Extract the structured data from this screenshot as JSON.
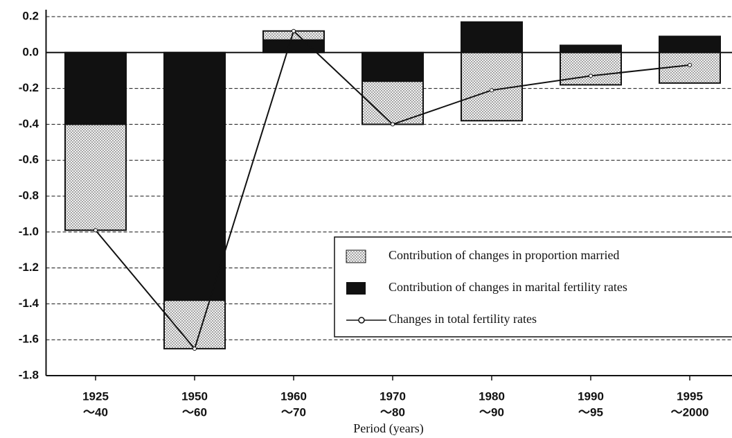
{
  "chart_data": {
    "type": "bar",
    "stacked": true,
    "xlabel": "Period (years)",
    "categories": [
      [
        "1925",
        "～40"
      ],
      [
        "1950",
        "～60"
      ],
      [
        "1960",
        "～70"
      ],
      [
        "1970",
        "～80"
      ],
      [
        "1980",
        "～90"
      ],
      [
        "1990",
        "～95"
      ],
      [
        "1995",
        "～2000"
      ]
    ],
    "ylim": [
      -1.8,
      0.2
    ],
    "yticks": [
      0.2,
      {
        "value": 0,
        "label": "0.0"
      },
      -0.2,
      -0.4,
      -0.6,
      -0.8,
      {
        "value": -1,
        "label": "-1.0"
      },
      -1.2,
      -1.4,
      -1.6,
      -1.8
    ],
    "grid": true,
    "legend": "right",
    "series": [
      {
        "name": "Contribution of changes in marital fertility rates",
        "type": "bar",
        "color": "#111111",
        "pattern": "solid",
        "values": [
          -0.4,
          -1.38,
          0.07,
          -0.16,
          0.17,
          0.04,
          0.09
        ]
      },
      {
        "name": "Contribution of changes in proportion married",
        "type": "bar",
        "color": "#f2f2f2",
        "pattern": "dotted",
        "values": [
          -0.59,
          -0.27,
          0.05,
          -0.24,
          -0.38,
          -0.18,
          -0.17
        ]
      },
      {
        "name": "Changes in total fertility rates",
        "type": "line",
        "color": "#111111",
        "values": [
          -0.99,
          -1.65,
          0.12,
          -0.4,
          -0.21,
          -0.13,
          -0.07
        ]
      }
    ]
  }
}
